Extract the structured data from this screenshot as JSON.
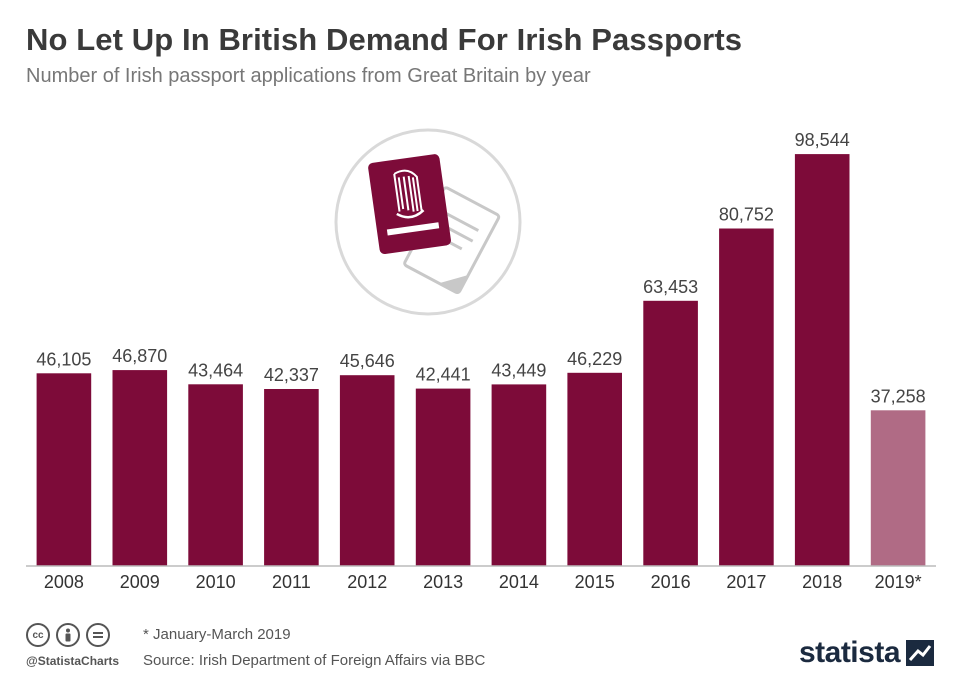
{
  "header": {
    "title": "No Let Up In British Demand For Irish Passports",
    "subtitle": "Number of Irish passport applications from Great Britain by year"
  },
  "chart_data": {
    "type": "bar",
    "title": "No Let Up In British Demand For Irish Passports",
    "subtitle": "Number of Irish passport applications from Great Britain by year",
    "categories": [
      "2008",
      "2009",
      "2010",
      "2011",
      "2012",
      "2013",
      "2014",
      "2015",
      "2016",
      "2017",
      "2018",
      "2019*"
    ],
    "values": [
      46105,
      46870,
      43464,
      42337,
      45646,
      42441,
      43449,
      46229,
      63453,
      80752,
      98544,
      37258
    ],
    "value_labels": [
      "46,105",
      "46,870",
      "43,464",
      "42,337",
      "45,646",
      "42,441",
      "43,449",
      "46,229",
      "63,453",
      "80,752",
      "98,544",
      "37,258"
    ],
    "ylim": [
      0,
      100000
    ],
    "grid": false,
    "legend": "none",
    "colors": {
      "bar": "#7d0b39",
      "bar_partial": "#b06b85",
      "baseline": "#bbbbbb"
    }
  },
  "footer": {
    "footnote": "* January-March 2019",
    "source": "Source: Irish Department of Foreign Affairs via BBC",
    "handle": "@StatistaCharts",
    "brand": "statista",
    "license_icons": [
      "cc-icon",
      "attribution-icon",
      "no-derivatives-icon"
    ]
  },
  "illustration": {
    "icon": "irish-passport-harp-icon"
  }
}
